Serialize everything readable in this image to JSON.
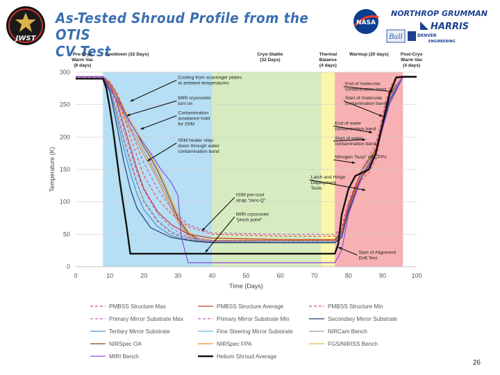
{
  "slide": {
    "title_line1": "As-Tested Shroud Profile from the OTIS",
    "title_line2": "CV Test",
    "page_number": "26",
    "logos": {
      "jwst": "JWST",
      "nasa": "NASA",
      "northrop": "NORTHROP GRUMMAN",
      "harris": "HARRIS",
      "ball": "Ball",
      "denver": "DENVER",
      "engineering": "ENGINEERING"
    }
  },
  "chart_data": {
    "type": "line",
    "xlabel": "Time (Days)",
    "ylabel": "Temperature (K)",
    "xlim": [
      0,
      100
    ],
    "ylim": [
      0,
      300
    ],
    "xticks": [
      0,
      10,
      20,
      30,
      40,
      50,
      60,
      70,
      80,
      90,
      100
    ],
    "yticks": [
      0,
      50,
      100,
      150,
      200,
      250,
      300
    ],
    "grid": "horizontal",
    "legend_position": "bottom",
    "phases": [
      {
        "label": "Pre-Cryo Warm Vac (8 days)",
        "start": 0,
        "end": 8,
        "color": "#ffffff"
      },
      {
        "label": "Cooldown (32 Days)",
        "start": 8,
        "end": 40,
        "color": "#a9d8f2"
      },
      {
        "label": "Cryo-Stable (32 Days)",
        "start": 40,
        "end": 72,
        "color": "#cfe7b4"
      },
      {
        "label": "Thermal Balance (4 days)",
        "start": 72,
        "end": 76,
        "color": "#fbf49b"
      },
      {
        "label": "Warmup (20 days)",
        "start": 76,
        "end": 96,
        "color": "#f6a3a6"
      },
      {
        "label": "Post-Cryo Warm Vac (4 days)",
        "start": 96,
        "end": 100,
        "color": "#ffffff"
      }
    ],
    "phase_headers": [
      {
        "lines": [
          "Pre-Cryo",
          "Warm Vac",
          "(8 days)"
        ],
        "x": 2
      },
      {
        "lines": [
          "Cooldown (32 Days)"
        ],
        "x": 15
      },
      {
        "lines": [
          "Cryo-Stable",
          "(32 Days)"
        ],
        "x": 57
      },
      {
        "lines": [
          "Thermal",
          "Balance",
          "(4 days)"
        ],
        "x": 74
      },
      {
        "lines": [
          "Warmup (20 days)"
        ],
        "x": 86
      },
      {
        "lines": [
          "Post-Cryo",
          "Warm Vac",
          "(4 days)"
        ],
        "x": 98.5
      }
    ],
    "annotations": [
      {
        "lines": [
          "Cooling from scavenger plates",
          "at ambient temperatures"
        ],
        "tx": 30,
        "ty": 290,
        "ax": 16,
        "ay": 255
      },
      {
        "lines": [
          "MIRI cryocooler",
          "turn on"
        ],
        "tx": 30,
        "ty": 258,
        "ax": 15,
        "ay": 233
      },
      {
        "lines": [
          "Contamination",
          "avoidance hold",
          "for ISIM"
        ],
        "tx": 30,
        "ty": 235,
        "ax": 19,
        "ay": 212
      },
      {
        "lines": [
          "ISIM heater step-",
          "down through water",
          "contamination band"
        ],
        "tx": 30,
        "ty": 193,
        "ax": 21,
        "ay": 163
      },
      {
        "lines": [
          "End of molecular",
          "contamination band"
        ],
        "tx": 79,
        "ty": 280,
        "ax": 93,
        "ay": 270
      },
      {
        "lines": [
          "Start of molecular",
          "contamination band"
        ],
        "tx": 79,
        "ty": 258,
        "ax": 90,
        "ay": 232
      },
      {
        "lines": [
          "End of water",
          "contamination band"
        ],
        "tx": 76,
        "ty": 219,
        "ax": 87,
        "ay": 207
      },
      {
        "lines": [
          "Start of water",
          "contamination band"
        ],
        "tx": 76,
        "ty": 196,
        "ax": 85,
        "ay": 196
      },
      {
        "lines": [
          "Nitrogen \"burp\" off CPPs"
        ],
        "tx": 76,
        "ty": 167,
        "ax": 82,
        "ay": 160
      },
      {
        "lines": [
          "Latch and Hinge",
          "Deployment",
          "Tests"
        ],
        "tx": 69,
        "ty": 136,
        "ax": 85,
        "ay": 118
      },
      {
        "lines": [
          "ISIM pre-cool",
          "strap \"zero-Q\""
        ],
        "tx": 47,
        "ty": 109,
        "ax": 37,
        "ay": 55
      },
      {
        "lines": [
          "MIRI cryocooler",
          "\"pinch point\""
        ],
        "tx": 47,
        "ty": 79,
        "ax": 38,
        "ay": 22
      },
      {
        "lines": [
          "Start of Alignment",
          "Drift Test"
        ],
        "tx": 83,
        "ty": 20,
        "ax": 77,
        "ay": 30
      }
    ],
    "legend": [
      {
        "name": "PMBSS Structure Max",
        "color": "#e0524a",
        "dash": "4,3",
        "width": 1.2
      },
      {
        "name": "PMBSS Structure Average",
        "color": "#c0392b",
        "dash": "",
        "width": 1.2
      },
      {
        "name": "PMBSS Structure Min",
        "color": "#e0524a",
        "dash": "4,3",
        "width": 1.2
      },
      {
        "name": "Primary Mirror Substrate Max",
        "color": "#c65cc7",
        "dash": "4,3",
        "width": 1.2
      },
      {
        "name": "Primary Mirror Substrate Min",
        "color": "#c65cc7",
        "dash": "4,3",
        "width": 1.2
      },
      {
        "name": "Secondary Mirror Substrate",
        "color": "#1f3d72",
        "dash": "",
        "width": 1.2
      },
      {
        "name": "Tertiary Mirror Substrate",
        "color": "#4a90c9",
        "dash": "",
        "width": 1.2
      },
      {
        "name": "Fine Steering Mirror Substrate",
        "color": "#6bb6e6",
        "dash": "",
        "width": 1.2
      },
      {
        "name": "NIRCam Bench",
        "color": "#9e9e9e",
        "dash": "",
        "width": 1.2
      },
      {
        "name": "NIRSpec OA",
        "color": "#8b4513",
        "dash": "",
        "width": 1.2
      },
      {
        "name": "NIRSpec FPA",
        "color": "#f28a2e",
        "dash": "",
        "width": 1.2
      },
      {
        "name": "FGS/NIRISS Bench",
        "color": "#e6b84c",
        "dash": "",
        "width": 1.2
      },
      {
        "name": "MIRI Bench",
        "color": "#8e4bd6",
        "dash": "",
        "width": 1.2
      },
      {
        "name": "Helium Shroud Average",
        "color": "#111111",
        "dash": "",
        "width": 2.4
      }
    ],
    "series": [
      {
        "name": "Helium Shroud Average",
        "color": "#111111",
        "width": 2.4,
        "dash": "",
        "x": [
          0,
          8,
          9,
          10,
          11,
          12,
          13,
          14,
          15,
          16,
          30,
          60,
          76,
          77,
          78,
          80,
          82,
          84,
          86,
          88,
          90,
          92,
          94,
          96,
          100
        ],
        "y": [
          290,
          290,
          275,
          245,
          210,
          170,
          130,
          95,
          60,
          20,
          20,
          20,
          20,
          35,
          80,
          120,
          140,
          145,
          150,
          175,
          220,
          265,
          292,
          293,
          293
        ]
      },
      {
        "name": "MIRI Bench",
        "color": "#8e4bd6",
        "width": 1.2,
        "dash": "",
        "x": [
          0,
          8,
          10,
          14,
          18,
          22,
          25,
          28,
          30,
          31,
          33,
          40,
          60,
          76,
          78,
          80,
          84,
          88,
          92,
          96,
          100
        ],
        "y": [
          293,
          293,
          275,
          240,
          205,
          175,
          150,
          130,
          110,
          45,
          6,
          6,
          6,
          6,
          25,
          80,
          140,
          175,
          250,
          293,
          293
        ]
      },
      {
        "name": "Secondary Mirror Substrate",
        "color": "#1f3d72",
        "width": 1.2,
        "dash": "",
        "x": [
          0,
          8,
          10,
          12,
          14,
          16,
          18,
          22,
          28,
          35,
          40,
          60,
          76,
          78,
          80,
          84,
          88,
          92,
          96,
          100
        ],
        "y": [
          293,
          293,
          270,
          220,
          165,
          120,
          90,
          60,
          45,
          39,
          37,
          37,
          37,
          45,
          85,
          140,
          175,
          255,
          293,
          293
        ]
      },
      {
        "name": "PMBSS Structure Average",
        "color": "#c0392b",
        "width": 1.2,
        "dash": "",
        "x": [
          0,
          8,
          10,
          12,
          14,
          16,
          18,
          20,
          24,
          28,
          33,
          40,
          60,
          76,
          78,
          80,
          82,
          84,
          86,
          88,
          90,
          92,
          94,
          96,
          100
        ],
        "y": [
          293,
          293,
          280,
          255,
          220,
          185,
          150,
          120,
          85,
          65,
          50,
          44,
          42,
          42,
          55,
          90,
          120,
          140,
          150,
          175,
          225,
          270,
          292,
          293,
          293
        ]
      },
      {
        "name": "PMBSS Structure Max",
        "color": "#e0524a",
        "width": 1.2,
        "dash": "4,3",
        "x": [
          0,
          8,
          10,
          12,
          14,
          16,
          18,
          20,
          24,
          28,
          33,
          40,
          60,
          76,
          78,
          80,
          82,
          84,
          86,
          88,
          90,
          92,
          94,
          96,
          100
        ],
        "y": [
          293,
          293,
          285,
          265,
          235,
          200,
          170,
          140,
          105,
          82,
          62,
          50,
          47,
          47,
          60,
          95,
          125,
          145,
          155,
          185,
          235,
          275,
          293,
          293,
          293
        ]
      },
      {
        "name": "PMBSS Structure Min",
        "color": "#e0524a",
        "width": 1.2,
        "dash": "4,3",
        "x": [
          0,
          8,
          10,
          12,
          14,
          16,
          18,
          20,
          24,
          28,
          33,
          40,
          60,
          76,
          78,
          80,
          82,
          84,
          86,
          88,
          90,
          92,
          94,
          96,
          100
        ],
        "y": [
          290,
          290,
          270,
          240,
          200,
          165,
          130,
          100,
          70,
          52,
          42,
          38,
          37,
          37,
          50,
          85,
          115,
          135,
          145,
          165,
          215,
          262,
          290,
          292,
          292
        ]
      },
      {
        "name": "Primary Mirror Substrate Max",
        "color": "#c65cc7",
        "width": 1.2,
        "dash": "4,3",
        "x": [
          0,
          8,
          10,
          12,
          14,
          16,
          18,
          20,
          24,
          28,
          33,
          40,
          60,
          76,
          78,
          80,
          84,
          88,
          92,
          96,
          100
        ],
        "y": [
          293,
          293,
          285,
          270,
          245,
          215,
          185,
          160,
          120,
          90,
          65,
          52,
          50,
          50,
          62,
          100,
          150,
          190,
          270,
          293,
          293
        ]
      },
      {
        "name": "Primary Mirror Substrate Min",
        "color": "#c65cc7",
        "width": 1.2,
        "dash": "4,3",
        "x": [
          0,
          8,
          10,
          12,
          14,
          16,
          18,
          20,
          24,
          28,
          33,
          40,
          60,
          76,
          78,
          80,
          84,
          88,
          92,
          96,
          100
        ],
        "y": [
          292,
          292,
          278,
          250,
          212,
          178,
          145,
          118,
          82,
          60,
          45,
          40,
          40,
          40,
          52,
          88,
          140,
          172,
          258,
          292,
          292
        ]
      },
      {
        "name": "Tertiary Mirror Substrate",
        "color": "#4a90c9",
        "width": 1.2,
        "dash": "",
        "x": [
          0,
          8,
          10,
          12,
          14,
          16,
          18,
          20,
          24,
          28,
          33,
          40,
          60,
          76,
          78,
          80,
          84,
          88,
          92,
          96,
          100
        ],
        "y": [
          293,
          293,
          272,
          232,
          185,
          145,
          112,
          88,
          62,
          48,
          41,
          38,
          37,
          37,
          48,
          85,
          138,
          172,
          255,
          293,
          293
        ]
      },
      {
        "name": "Fine Steering Mirror Substrate",
        "color": "#6bb6e6",
        "width": 1.2,
        "dash": "",
        "x": [
          0,
          8,
          10,
          12,
          14,
          16,
          18,
          20,
          24,
          28,
          33,
          40,
          60,
          76,
          78,
          80,
          84,
          88,
          92,
          96,
          100
        ],
        "y": [
          293,
          293,
          276,
          240,
          198,
          160,
          128,
          102,
          72,
          54,
          44,
          39,
          38,
          38,
          50,
          87,
          140,
          174,
          258,
          293,
          293
        ]
      },
      {
        "name": "NIRCam Bench",
        "color": "#9e9e9e",
        "width": 1.2,
        "dash": "",
        "x": [
          0,
          8,
          10,
          12,
          14,
          16,
          18,
          20,
          22,
          24,
          26,
          28,
          30,
          33,
          36,
          40,
          60,
          76,
          78,
          80,
          84,
          88,
          92,
          96,
          100
        ],
        "y": [
          293,
          293,
          282,
          262,
          238,
          215,
          198,
          178,
          160,
          140,
          118,
          95,
          72,
          50,
          40,
          38,
          38,
          38,
          50,
          90,
          145,
          178,
          262,
          293,
          293
        ]
      },
      {
        "name": "NIRSpec OA",
        "color": "#8b4513",
        "width": 1.2,
        "dash": "",
        "x": [
          0,
          8,
          10,
          12,
          14,
          16,
          18,
          20,
          22,
          24,
          26,
          28,
          30,
          33,
          36,
          40,
          60,
          76,
          78,
          80,
          84,
          88,
          92,
          96,
          100
        ],
        "y": [
          293,
          293,
          283,
          265,
          243,
          222,
          205,
          185,
          168,
          148,
          125,
          100,
          75,
          52,
          42,
          40,
          40,
          40,
          52,
          95,
          150,
          180,
          265,
          293,
          293
        ]
      },
      {
        "name": "NIRSpec FPA",
        "color": "#f28a2e",
        "width": 1.2,
        "dash": "",
        "x": [
          0,
          8,
          10,
          12,
          14,
          16,
          18,
          20,
          22,
          24,
          26,
          28,
          30,
          33,
          36,
          40,
          60,
          76,
          78,
          80,
          84,
          88,
          92,
          96,
          100
        ],
        "y": [
          293,
          293,
          280,
          258,
          232,
          210,
          192,
          172,
          155,
          135,
          112,
          90,
          68,
          47,
          39,
          37,
          37,
          37,
          49,
          88,
          143,
          176,
          260,
          293,
          293
        ]
      },
      {
        "name": "FGS/NIRISS Bench",
        "color": "#e6b84c",
        "width": 1.2,
        "dash": "",
        "x": [
          0,
          8,
          10,
          12,
          14,
          16,
          18,
          20,
          22,
          24,
          26,
          28,
          30,
          33,
          36,
          40,
          60,
          76,
          78,
          80,
          84,
          88,
          92,
          96,
          100
        ],
        "y": [
          293,
          293,
          285,
          268,
          246,
          226,
          209,
          190,
          172,
          152,
          130,
          105,
          80,
          55,
          44,
          41,
          41,
          41,
          53,
          96,
          152,
          182,
          266,
          293,
          293
        ]
      }
    ]
  }
}
